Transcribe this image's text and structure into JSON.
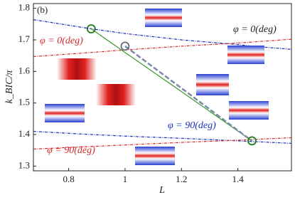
{
  "chart_data": {
    "type": "line",
    "panel_label": "(b)",
    "x_label": "L",
    "y_label": "k_BIC/π",
    "annotations": [
      "φ = 0(deg)",
      "φ = 0(deg)",
      "φ = 90(deg)",
      "φ = 90(deg)"
    ],
    "x": [
      0.675,
      0.88,
      1.0,
      1.2,
      1.4,
      1.45,
      1.59
    ],
    "series": [
      {
        "color": "#1f2fbf",
        "style": "dotted",
        "values": [
          1.764,
          1.735,
          1.72,
          1.7,
          1.685,
          1.68,
          1.67
        ]
      },
      {
        "color": "#d42a2a",
        "style": "dotted",
        "values": [
          1.647,
          1.66,
          1.668,
          1.68,
          1.69,
          1.693,
          1.702
        ]
      },
      {
        "color": "#1f2fbf",
        "style": "dotted",
        "values": [
          1.41,
          1.4,
          1.395,
          1.388,
          1.38,
          1.378,
          1.372
        ]
      },
      {
        "color": "#d42a2a",
        "style": "dotted",
        "values": [
          1.354,
          1.362,
          1.367,
          1.375,
          1.382,
          1.384,
          1.39
        ]
      },
      {
        "color": "#3a9a2a",
        "style": "solid",
        "values": [
          null,
          1.735,
          1.66,
          1.536,
          1.411,
          1.38,
          null
        ]
      },
      {
        "color": "#7a8aa8",
        "style": "dashed",
        "values": [
          null,
          null,
          1.68,
          1.547,
          1.413,
          1.38,
          null
        ]
      }
    ],
    "circles": [
      {
        "x": 0.88,
        "y": 1.735,
        "color": "#1a7a1a"
      },
      {
        "x": 1.0,
        "y": 1.68,
        "color": "#6a6a7a"
      },
      {
        "x": 1.45,
        "y": 1.38,
        "color": "#1a7a1a"
      }
    ],
    "xlim": [
      0.675,
      1.59
    ],
    "ylim": [
      1.285,
      1.815
    ],
    "xticks": [
      0.8,
      1,
      1.2,
      1.4
    ],
    "yticks": [
      1.3,
      1.4,
      1.5,
      1.6,
      1.7,
      1.8
    ],
    "grid": false
  }
}
